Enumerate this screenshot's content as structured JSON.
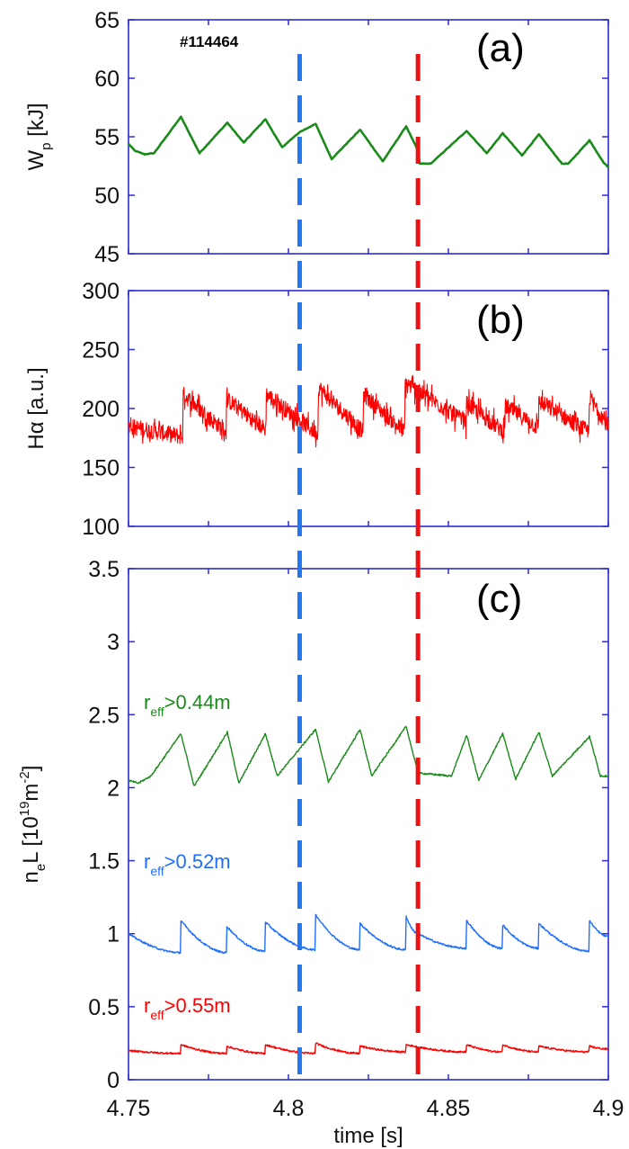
{
  "chart_data": [
    {
      "type": "line",
      "panel_label": "(a)",
      "annotation": "#114464",
      "ylabel": {
        "main": "W",
        "sub": "p",
        "unit": " [kJ]"
      },
      "ylim": [
        45,
        65
      ],
      "yticks": [
        "45",
        "50",
        "55",
        "60",
        "65"
      ],
      "xlim": [
        4.75,
        4.9
      ],
      "series": [
        {
          "color": "#1a8a1a",
          "x": [
            4.75,
            4.752,
            4.755,
            4.758,
            4.7664,
            4.7722,
            4.7809,
            4.786,
            4.7928,
            4.798,
            4.8035,
            4.8085,
            4.8135,
            4.8224,
            4.8295,
            4.8368,
            4.8405,
            4.841,
            4.8445,
            4.8557,
            4.862,
            4.867,
            4.873,
            4.8783,
            4.8855,
            4.8875,
            4.8941,
            4.8985,
            4.9
          ],
          "y": [
            54.4,
            53.8,
            53.5,
            53.6,
            56.7,
            53.6,
            56.2,
            54.5,
            56.5,
            54.1,
            55.4,
            56.1,
            53.1,
            55.6,
            52.9,
            55.9,
            53.8,
            52.7,
            52.7,
            55.5,
            53.6,
            55.3,
            53.4,
            55.2,
            52.7,
            52.7,
            54.7,
            52.8,
            52.4
          ]
        }
      ]
    },
    {
      "type": "line",
      "panel_label": "(b)",
      "ylabel": {
        "main": "Hα",
        "unit": " [a.u.]"
      },
      "ylim": [
        100,
        300
      ],
      "yticks": [
        "100",
        "150",
        "200",
        "250",
        "300"
      ],
      "xlim": [
        4.75,
        4.9
      ],
      "series": [
        {
          "color": "#ff0000",
          "x": [
            4.75,
            4.7669,
            4.7671,
            4.7805,
            4.7807,
            4.7929,
            4.7931,
            4.8092,
            4.8094,
            4.8233,
            4.8235,
            4.8363,
            4.8365,
            4.8555,
            4.8557,
            4.8676,
            4.8678,
            4.8781,
            4.8783,
            4.8939,
            4.8941,
            4.9
          ],
          "y": [
            185,
            176,
            212,
            180,
            208,
            182,
            212,
            178,
            218,
            180,
            212,
            180,
            222,
            188,
            204,
            180,
            202,
            184,
            206,
            180,
            210,
            185
          ]
        }
      ]
    },
    {
      "type": "line",
      "panel_label": "(c)",
      "ylabel": {
        "main": "n",
        "sub": "e",
        "mid": "L [10",
        "sup": "19",
        "mid2": "m",
        "sup2": "-2",
        "end": "]"
      },
      "ylim": [
        0,
        3.5
      ],
      "yticks": [
        "0",
        "0.5",
        "1",
        "1.5",
        "2",
        "2.5",
        "3",
        "3.5"
      ],
      "xlim": [
        4.75,
        4.9
      ],
      "xticks": [
        "4.75",
        "4.8",
        "4.85",
        "4.9"
      ],
      "xlabel": "time [s]",
      "series": [
        {
          "name": "r_eff>0.44m",
          "label": {
            "r": "r",
            "sub": "eff",
            "rest": ">0.44m"
          },
          "color": "#1a8a1a",
          "x": [
            4.75,
            4.753,
            4.757,
            4.7664,
            4.7705,
            4.7809,
            4.7845,
            4.7928,
            4.7965,
            4.8085,
            4.8125,
            4.8224,
            4.826,
            4.8368,
            4.8405,
            4.851,
            4.8557,
            4.8595,
            4.867,
            4.871,
            4.8783,
            4.8825,
            4.8941,
            4.8975,
            4.9
          ],
          "y": [
            2.05,
            2.03,
            2.08,
            2.37,
            2.01,
            2.38,
            2.03,
            2.37,
            2.08,
            2.4,
            2.04,
            2.4,
            2.08,
            2.42,
            2.1,
            2.08,
            2.36,
            2.05,
            2.37,
            2.06,
            2.38,
            2.08,
            2.35,
            2.08,
            2.08
          ]
        },
        {
          "name": "r_eff>0.52m",
          "label": {
            "r": "r",
            "sub": "eff",
            "rest": ">0.52m"
          },
          "color": "#1e6eff",
          "x": [
            4.75,
            4.7662,
            4.7664,
            4.7806,
            4.7808,
            4.7926,
            4.7928,
            4.8083,
            4.8085,
            4.8222,
            4.8224,
            4.8366,
            4.8368,
            4.8405,
            4.8555,
            4.8557,
            4.8668,
            4.867,
            4.8781,
            4.8783,
            4.8939,
            4.8941,
            4.9
          ],
          "y": [
            1.0,
            0.87,
            1.09,
            0.87,
            1.05,
            0.88,
            1.08,
            0.89,
            1.13,
            0.89,
            1.07,
            0.89,
            1.12,
            1.0,
            0.9,
            1.09,
            0.9,
            1.06,
            0.9,
            1.07,
            0.88,
            1.09,
            0.98
          ]
        },
        {
          "name": "r_eff>0.55m",
          "label": {
            "r": "r",
            "sub": "eff",
            "rest": ">0.55m"
          },
          "color": "#ff0000",
          "x": [
            4.75,
            4.7662,
            4.7664,
            4.7806,
            4.7808,
            4.7926,
            4.7928,
            4.8083,
            4.8085,
            4.8222,
            4.8224,
            4.8366,
            4.8368,
            4.8555,
            4.8557,
            4.8668,
            4.867,
            4.8781,
            4.8783,
            4.8939,
            4.8941,
            4.9
          ],
          "y": [
            0.2,
            0.18,
            0.24,
            0.18,
            0.23,
            0.18,
            0.24,
            0.18,
            0.25,
            0.18,
            0.23,
            0.19,
            0.24,
            0.19,
            0.24,
            0.19,
            0.24,
            0.19,
            0.23,
            0.19,
            0.23,
            0.21
          ]
        }
      ]
    }
  ],
  "markers": [
    {
      "x": 4.8035,
      "color": "#2277ee",
      "style": "dashed"
    },
    {
      "x": 4.8405,
      "color": "#ee1111",
      "style": "dashed"
    }
  ],
  "axis_color": "#2b2bd6"
}
